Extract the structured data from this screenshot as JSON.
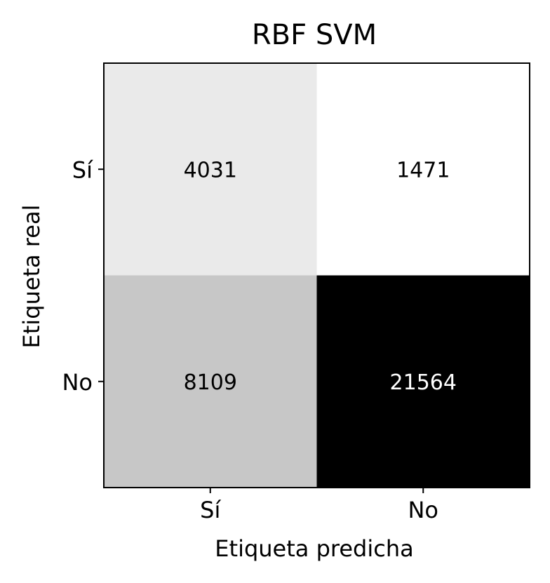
{
  "chart_data": {
    "type": "heatmap",
    "title": "RBF SVM",
    "xlabel": "Etiqueta predicha",
    "ylabel": "Etiqueta real",
    "x_categories": [
      "Sí",
      "No"
    ],
    "y_categories": [
      "Sí",
      "No"
    ],
    "values": [
      [
        4031,
        1471
      ],
      [
        8109,
        21564
      ]
    ],
    "colormap": "Greys",
    "colors": {
      "low": "#ffffff",
      "high": "#000000",
      "text_dark": "#000000",
      "text_light": "#ffffff",
      "border": "#000000"
    }
  }
}
